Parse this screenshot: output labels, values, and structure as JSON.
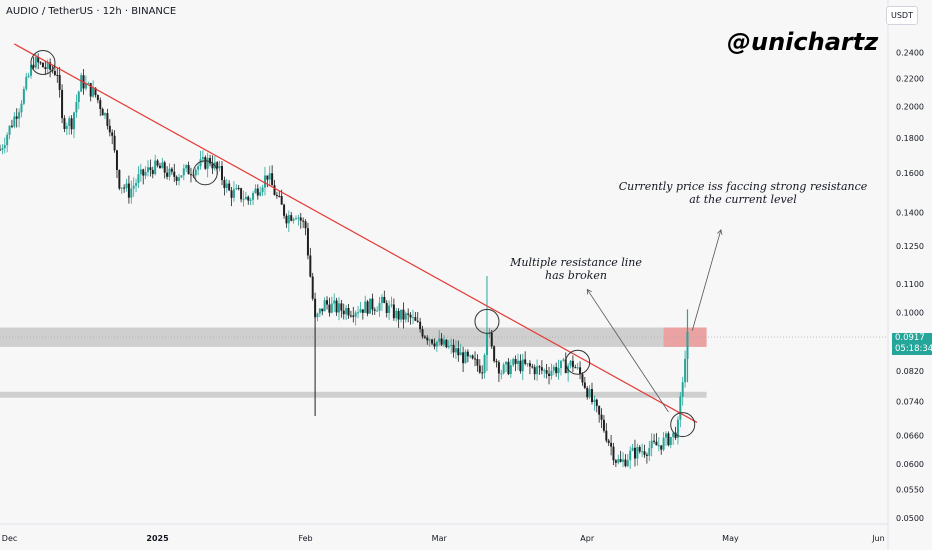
{
  "header": {
    "symbol_line": "AUDIO / TetherUS · 12h · BINANCE",
    "currency": "USDT"
  },
  "watermark": "@unichartz",
  "annotations": {
    "resistance_note_line1": "Currently price iss faccing strong resistance",
    "resistance_note_line2": "at the current level",
    "broken_note_line1": "Multiple resistance line",
    "broken_note_line2": "has broken"
  },
  "price_tag": {
    "value": "0.0917",
    "countdown": "05:18:34"
  },
  "colors": {
    "up": "#26a69a",
    "down": "#1f1f1f",
    "trendline": "#e53935",
    "zone": "#c8c8c8",
    "sell_zone": "#ef9a9a",
    "tag": "#26a69a"
  },
  "chart_data": {
    "type": "candlestick",
    "scale": "log",
    "ylim": [
      0.05,
      0.252
    ],
    "xlabel": "",
    "ylabel": "",
    "y_ticks": [
      "0.2400",
      "0.2200",
      "0.2000",
      "0.1800",
      "0.1600",
      "0.1400",
      "0.1250",
      "0.1100",
      "0.1000",
      "0.0820",
      "0.0740",
      "0.0660",
      "0.0600",
      "0.0550",
      "0.0500"
    ],
    "x_ticks": [
      "Dec",
      "2025",
      "Feb",
      "Mar",
      "Apr",
      "May",
      "Jun"
    ],
    "x_tick_dates": [
      "2024-12-01",
      "2025-01-01",
      "2025-02-01",
      "2025-03-01",
      "2025-04-01",
      "2025-05-01",
      "2025-06-01"
    ],
    "close_path": [
      [
        "2024-11-29",
        0.173
      ],
      [
        "2024-12-03",
        0.2
      ],
      [
        "2024-12-06",
        0.233
      ],
      [
        "2024-12-09",
        0.227
      ],
      [
        "2024-12-11",
        0.225
      ],
      [
        "2024-12-12",
        0.19
      ],
      [
        "2024-12-14",
        0.19
      ],
      [
        "2024-12-16",
        0.218
      ],
      [
        "2024-12-19",
        0.208
      ],
      [
        "2024-12-22",
        0.188
      ],
      [
        "2024-12-24",
        0.155
      ],
      [
        "2024-12-26",
        0.15
      ],
      [
        "2024-12-28",
        0.157
      ],
      [
        "2024-12-31",
        0.163
      ],
      [
        "2025-01-02",
        0.162
      ],
      [
        "2025-01-04",
        0.158
      ],
      [
        "2025-01-06",
        0.16
      ],
      [
        "2025-01-09",
        0.163
      ],
      [
        "2025-01-12",
        0.167
      ],
      [
        "2025-01-14",
        0.16
      ],
      [
        "2025-01-16",
        0.15
      ],
      [
        "2025-01-18",
        0.149
      ],
      [
        "2025-01-20",
        0.146
      ],
      [
        "2025-01-22",
        0.152
      ],
      [
        "2025-01-24",
        0.159
      ],
      [
        "2025-01-26",
        0.147
      ],
      [
        "2025-01-28",
        0.138
      ],
      [
        "2025-01-30",
        0.14
      ],
      [
        "2025-02-01",
        0.133
      ],
      [
        "2025-02-02",
        0.113
      ],
      [
        "2025-02-03",
        0.097
      ],
      [
        "2025-02-05",
        0.103
      ],
      [
        "2025-02-08",
        0.101
      ],
      [
        "2025-02-11",
        0.101
      ],
      [
        "2025-02-14",
        0.102
      ],
      [
        "2025-02-17",
        0.103
      ],
      [
        "2025-02-20",
        0.099
      ],
      [
        "2025-02-23",
        0.098
      ],
      [
        "2025-02-26",
        0.093
      ],
      [
        "2025-03-01",
        0.09
      ],
      [
        "2025-03-04",
        0.088
      ],
      [
        "2025-03-07",
        0.085
      ],
      [
        "2025-03-10",
        0.083
      ],
      [
        "2025-03-11",
        0.095
      ],
      [
        "2025-03-12",
        0.088
      ],
      [
        "2025-03-14",
        0.082
      ],
      [
        "2025-03-17",
        0.084
      ],
      [
        "2025-03-20",
        0.083
      ],
      [
        "2025-03-23",
        0.082
      ],
      [
        "2025-03-26",
        0.083
      ],
      [
        "2025-03-29",
        0.084
      ],
      [
        "2025-03-31",
        0.08
      ],
      [
        "2025-04-02",
        0.074
      ],
      [
        "2025-04-04",
        0.069
      ],
      [
        "2025-04-07",
        0.061
      ],
      [
        "2025-04-08",
        0.06
      ],
      [
        "2025-04-10",
        0.062
      ],
      [
        "2025-04-13",
        0.063
      ],
      [
        "2025-04-16",
        0.064
      ],
      [
        "2025-04-19",
        0.066
      ],
      [
        "2025-04-20",
        0.068
      ],
      [
        "2025-04-21",
        0.08
      ],
      [
        "2025-04-22",
        0.092
      ]
    ],
    "zones": [
      {
        "name": "resistance-zone",
        "low": 0.089,
        "high": 0.095,
        "from": "2024-11-29",
        "to": "2025-04-26"
      },
      {
        "name": "support-zone",
        "low": 0.075,
        "high": 0.0765,
        "from": "2024-11-29",
        "to": "2025-04-26"
      },
      {
        "name": "sell-zone",
        "low": 0.089,
        "high": 0.095,
        "from": "2025-04-17",
        "to": "2025-04-26"
      }
    ],
    "trendline": {
      "from": [
        "2024-12-02",
        0.247
      ],
      "to": [
        "2025-04-24",
        0.069
      ]
    },
    "touch_points": [
      [
        "2024-12-08",
        0.232
      ],
      [
        "2025-01-11",
        0.16
      ],
      [
        "2025-03-11",
        0.097
      ],
      [
        "2025-03-30",
        0.0845
      ],
      [
        "2025-04-21",
        0.0685
      ]
    ],
    "arrows": [
      {
        "name": "arrow-to-resistance-note",
        "from": [
          "2025-04-23",
          0.094
        ],
        "to": [
          "2025-04-29",
          0.132
        ]
      },
      {
        "name": "arrow-to-broken-note",
        "from": [
          "2025-04-18",
          0.0715
        ],
        "to": [
          "2025-04-01",
          0.108
        ]
      }
    ],
    "min_date": "2024-11-29",
    "max_date": "2025-06-03"
  }
}
